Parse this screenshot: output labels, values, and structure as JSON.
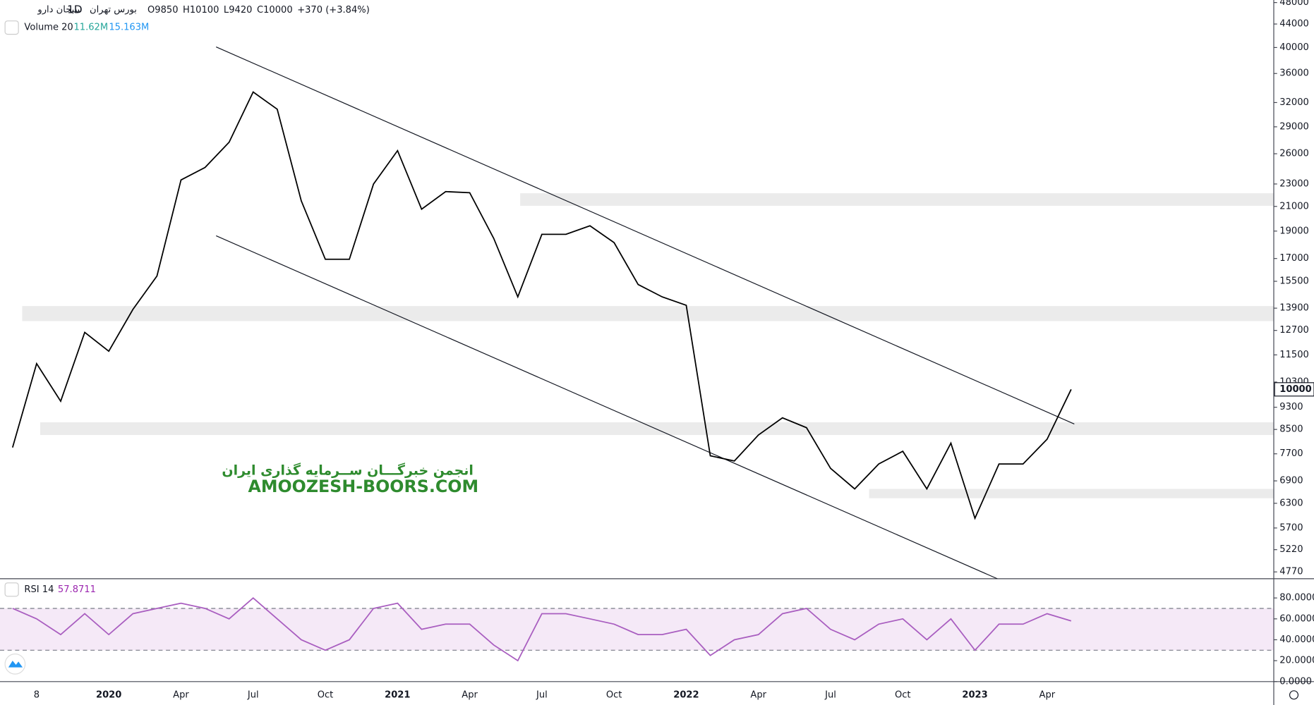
{
  "header": {
    "symbol": "سبحان دارو",
    "interval": "1D",
    "exchange": "بورس تهران",
    "ohlc": [
      {
        "label": "O",
        "value": 9850
      },
      {
        "label": "H",
        "value": 10100
      },
      {
        "label": "L",
        "value": 9420
      },
      {
        "label": "C",
        "value": 10000
      }
    ],
    "change": "+370 (+3.84%)",
    "volume": {
      "name": "Volume 20",
      "value": "11.62M",
      "average": "15.163M"
    },
    "rsi": {
      "name": "RSI 14",
      "value": "57.8711"
    },
    "watermark": [
      "انجمن خبرگـــان ســرمایه گذاری ایران",
      "AMOOZESH-BOORS.COM"
    ]
  },
  "chart_data": [
    {
      "type": "line",
      "log_scale": true,
      "color": "#000000",
      "categories": [
        null,
        "8",
        null,
        null,
        "2020",
        null,
        null,
        "Apr",
        null,
        null,
        "Jul",
        null,
        null,
        "Oct",
        null,
        null,
        "2021",
        null,
        null,
        "Apr",
        null,
        null,
        "Jul",
        null,
        null,
        "Oct",
        null,
        null,
        "2022",
        null,
        null,
        "Apr",
        null,
        null,
        "Jul",
        null,
        null,
        "Oct",
        null,
        null,
        "2023",
        null,
        null,
        "Apr",
        null
      ],
      "values": [
        7900,
        11100,
        9530,
        12600,
        11670,
        13830,
        15840,
        23380,
        24600,
        27240,
        33400,
        31150,
        21480,
        16950,
        16950,
        22990,
        26330,
        20770,
        22300,
        22200,
        18440,
        14550,
        18750,
        18750,
        19410,
        18130,
        15300,
        14550,
        14060,
        7640,
        7480,
        8310,
        8910,
        8560,
        7260,
        6680,
        7390,
        7780,
        6680,
        8040,
        5930,
        7390,
        7390,
        8170,
        10000
      ],
      "ylim": [
        4640,
        48500
      ],
      "yticks": [
        4770,
        5220,
        5700,
        6300,
        6900,
        7700,
        8500,
        9300,
        10300,
        11500,
        12700,
        13900,
        15500,
        17000,
        19000,
        21000,
        23000,
        26000,
        29000,
        32000,
        36000,
        40000,
        44000,
        48000
      ],
      "zones": [
        {
          "from": 21.1,
          "range": [
            21050,
            22150
          ]
        },
        {
          "from": 0.4,
          "range": [
            13190,
            14020
          ]
        },
        {
          "from": 1.15,
          "range": [
            8310,
            8750
          ]
        },
        {
          "from": 35.6,
          "range": [
            6430,
            6680
          ]
        }
      ],
      "trendlines": [
        {
          "x": [
            8.46,
            44.13
          ],
          "y": [
            40100,
            8690
          ]
        },
        {
          "x": [
            8.46,
            40.93
          ],
          "y": [
            18640,
            4640
          ]
        }
      ]
    },
    {
      "type": "line",
      "color": "#a95ec0",
      "values": [
        70,
        60,
        45,
        65,
        45,
        65,
        70,
        75,
        70,
        60,
        80,
        60,
        40,
        30,
        40,
        70,
        75,
        50,
        55,
        55,
        35,
        20,
        65,
        65,
        60,
        55,
        45,
        45,
        50,
        25,
        40,
        45,
        65,
        70,
        50,
        40,
        55,
        60,
        40,
        60,
        30,
        55,
        55,
        65,
        58
      ],
      "ylim": [
        0,
        98.4
      ],
      "yticks": [
        {
          "value": 0,
          "label": "0.0000"
        },
        {
          "value": 20,
          "label": "20.0000"
        },
        {
          "value": 40,
          "label": "40.0000"
        },
        {
          "value": 60,
          "label": "60.0000"
        },
        {
          "value": 80,
          "label": "80.0000"
        }
      ],
      "band": [
        30,
        70
      ]
    }
  ]
}
